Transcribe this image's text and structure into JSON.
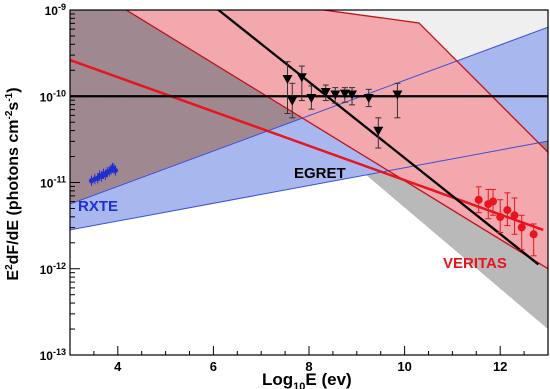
{
  "chart_data": {
    "type": "scatter",
    "xlabel_main": "Log",
    "xlabel_sub": "10",
    "xlabel_tail": "E (ev)",
    "ylabel_parts": [
      "E",
      "2",
      "dF/dE (photons cm",
      "-2",
      "s",
      "-1",
      ")"
    ],
    "xlim": [
      3.0,
      13.0
    ],
    "ylim_log10": [
      -13,
      -9
    ],
    "x_ticks": [
      4,
      6,
      8,
      10,
      12
    ],
    "x_tick_labels": [
      "4",
      "6",
      "8",
      "10",
      "12"
    ],
    "y_ticks_log10": [
      -13,
      -12,
      -11,
      -10,
      -9
    ],
    "y_tick_mant": "10",
    "y_tick_exps": [
      "-13",
      "-12",
      "-11",
      "-10",
      "-9"
    ],
    "grid": false,
    "colors": {
      "rxte": "#1f2fd0",
      "egret": "#000000",
      "veritas": "#e8141e",
      "blue_band": "#a8b8ef",
      "red_band": "#f2a8ad",
      "overlap": "#a08890",
      "gray": "#b9b9b9",
      "lightgray": "#efefef"
    },
    "labels": {
      "rxte": "RXTE",
      "egret": "EGRET",
      "veritas": "VERITAS"
    },
    "bands": [
      {
        "name": "blue_band",
        "upper": [
          [
            3.0,
            -11.25
          ],
          [
            13.0,
            -9.2
          ]
        ],
        "lower": [
          [
            3.0,
            -11.55
          ],
          [
            13.0,
            -10.52
          ]
        ]
      },
      {
        "name": "red_band",
        "upper": [
          [
            3.0,
            -8.6
          ],
          [
            10.3,
            -9.15
          ],
          [
            13.0,
            -10.65
          ]
        ],
        "lower": [
          [
            3.0,
            -8.6
          ],
          [
            13.0,
            -12.0
          ]
        ]
      },
      {
        "name": "gray_band",
        "upper": [
          [
            3.0,
            -8.0
          ],
          [
            13.0,
            -12.7
          ]
        ],
        "lower": [
          [
            3.0,
            -10.0
          ],
          [
            13.0,
            -10.0
          ]
        ]
      }
    ],
    "egret_lines": [
      {
        "from": [
          3.0,
          -10.0
        ],
        "to": [
          13.0,
          -10.0
        ]
      },
      {
        "from": [
          5.2,
          -8.6
        ],
        "to": [
          12.8,
          -11.95
        ]
      }
    ],
    "red_line": {
      "from": [
        3.0,
        -9.58
      ],
      "to": [
        12.9,
        -11.55
      ]
    },
    "rxte_points": [
      [
        3.45,
        -10.98
      ],
      [
        3.52,
        -10.96
      ],
      [
        3.58,
        -10.95
      ],
      [
        3.62,
        -10.92
      ],
      [
        3.66,
        -10.93
      ],
      [
        3.7,
        -10.9
      ],
      [
        3.74,
        -10.91
      ],
      [
        3.78,
        -10.88
      ],
      [
        3.82,
        -10.87
      ],
      [
        3.86,
        -10.85
      ],
      [
        3.89,
        -10.83
      ],
      [
        3.92,
        -10.84
      ],
      [
        3.95,
        -10.86
      ]
    ],
    "egret_points": [
      {
        "x": 7.55,
        "y": -9.8,
        "lo": -10.2,
        "hi": -9.6
      },
      {
        "x": 7.65,
        "y": -10.05,
        "lo": -10.25,
        "hi": -9.85
      },
      {
        "x": 7.85,
        "y": -9.78,
        "lo": -10.05,
        "hi": -9.65
      },
      {
        "x": 8.05,
        "y": -10.02,
        "lo": -10.15,
        "hi": -9.88
      },
      {
        "x": 8.35,
        "y": -9.95,
        "lo": -10.05,
        "hi": -9.87
      },
      {
        "x": 8.55,
        "y": -9.98,
        "lo": -10.08,
        "hi": -9.9
      },
      {
        "x": 8.75,
        "y": -9.97,
        "lo": -10.07,
        "hi": -9.9
      },
      {
        "x": 8.9,
        "y": -9.98,
        "lo": -10.1,
        "hi": -9.9
      },
      {
        "x": 9.25,
        "y": -10.02,
        "lo": -10.12,
        "hi": -9.92
      },
      {
        "x": 9.45,
        "y": -10.4,
        "lo": -10.6,
        "hi": -10.25
      },
      {
        "x": 9.85,
        "y": -9.98,
        "lo": -10.25,
        "hi": -9.85
      }
    ],
    "veritas_points": [
      {
        "x": 11.55,
        "y": -11.2,
        "lo": -11.35,
        "hi": -11.05
      },
      {
        "x": 11.75,
        "y": -11.25,
        "lo": -11.42,
        "hi": -11.08
      },
      {
        "x": 11.85,
        "y": -11.22,
        "lo": -11.38,
        "hi": -11.08
      },
      {
        "x": 12.0,
        "y": -11.4,
        "lo": -11.58,
        "hi": -11.2
      },
      {
        "x": 12.15,
        "y": -11.32,
        "lo": -11.5,
        "hi": -11.12
      },
      {
        "x": 12.3,
        "y": -11.38,
        "lo": -11.6,
        "hi": -11.18
      },
      {
        "x": 12.45,
        "y": -11.52,
        "lo": -11.78,
        "hi": -11.38
      },
      {
        "x": 12.7,
        "y": -11.6,
        "lo": -11.85,
        "hi": -11.48
      }
    ]
  }
}
